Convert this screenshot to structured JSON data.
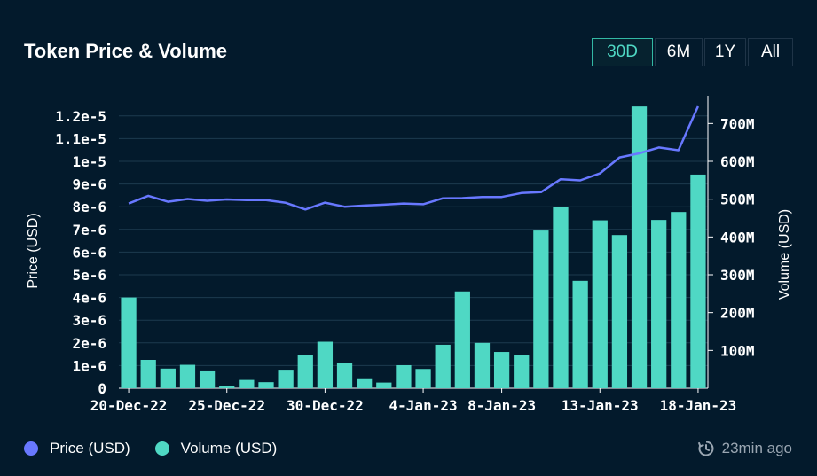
{
  "header": {
    "title": "Token Price & Volume"
  },
  "ranges": [
    {
      "label": "30D",
      "active": true
    },
    {
      "label": "6M",
      "active": false
    },
    {
      "label": "1Y",
      "active": false
    },
    {
      "label": "All",
      "active": false
    }
  ],
  "colors": {
    "price": "#6878ff",
    "volume": "#4fd8c4",
    "grid": "#1d3a4e"
  },
  "legend": {
    "price_label": "Price (USD)",
    "volume_label": "Volume (USD)"
  },
  "footer": {
    "updated": "23min ago"
  },
  "chart_data": {
    "type": "bar+line",
    "title": "Token Price & Volume",
    "xlabel": "",
    "ylabel_left": "Price (USD)",
    "ylabel_right": "Volume (USD)",
    "x_tick_labels": [
      "20-Dec-22",
      "25-Dec-22",
      "30-Dec-22",
      "4-Jan-23",
      "8-Jan-23",
      "13-Jan-23",
      "18-Jan-23"
    ],
    "x_tick_indices": [
      0,
      5,
      10,
      15,
      19,
      24,
      29
    ],
    "y_left_ticks": [
      "0",
      "1e-6",
      "2e-6",
      "3e-6",
      "4e-6",
      "5e-6",
      "6e-6",
      "7e-6",
      "8e-6",
      "9e-6",
      "1e-5",
      "1.1e-5",
      "1.2e-5"
    ],
    "y_left_range": [
      0,
      1.25e-05
    ],
    "y_right_ticks": [
      "100M",
      "200M",
      "300M",
      "400M",
      "500M",
      "600M",
      "700M"
    ],
    "y_right_range": [
      0,
      750000000
    ],
    "series": [
      {
        "name": "Volume (USD)",
        "type": "bar",
        "axis": "right",
        "values": [
          240000000,
          75000000,
          52000000,
          62000000,
          47000000,
          5000000,
          22000000,
          16000000,
          49000000,
          88000000,
          123000000,
          66000000,
          24000000,
          15000000,
          61000000,
          51000000,
          115000000,
          256000000,
          120000000,
          96000000,
          88000000,
          417000000,
          480000000,
          284000000,
          444000000,
          405000000,
          745000000,
          445000000,
          466000000,
          565000000
        ]
      },
      {
        "name": "Price (USD)",
        "type": "line",
        "axis": "left",
        "values": [
          8.14e-06,
          8.48e-06,
          8.22e-06,
          8.34e-06,
          8.26e-06,
          8.32e-06,
          8.29e-06,
          8.29e-06,
          8.17e-06,
          7.88e-06,
          8.18e-06,
          8e-06,
          8.05e-06,
          8.09e-06,
          8.14e-06,
          8.11e-06,
          8.37e-06,
          8.38e-06,
          8.43e-06,
          8.43e-06,
          8.6e-06,
          8.64e-06,
          9.21e-06,
          9.16e-06,
          9.47e-06,
          1.017e-05,
          1.035e-05,
          1.061e-05,
          1.049e-05,
          1.242e-05
        ]
      }
    ]
  }
}
